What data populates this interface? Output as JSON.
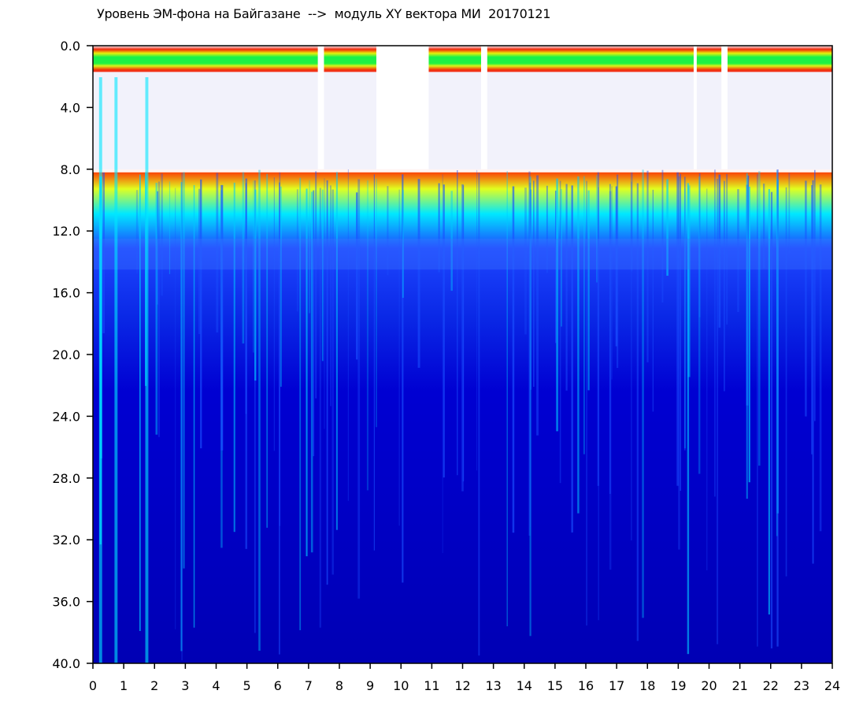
{
  "chart_data": {
    "type": "heatmap",
    "title": "Уровень ЭМ-фона на Байгазане  -->  модуль XY вектора МИ  20170121",
    "xlabel": "",
    "ylabel": "",
    "xlim": [
      0,
      24
    ],
    "ylim": [
      0,
      40
    ],
    "y_inverted": true,
    "grid": false,
    "x_ticks": [
      "0",
      "1",
      "2",
      "3",
      "4",
      "5",
      "6",
      "7",
      "8",
      "9",
      "10",
      "11",
      "12",
      "13",
      "14",
      "15",
      "16",
      "17",
      "18",
      "19",
      "20",
      "21",
      "22",
      "23",
      "24"
    ],
    "y_ticks": [
      "0.0",
      "4.0",
      "8.0",
      "12.0",
      "16.0",
      "20.0",
      "24.0",
      "28.0",
      "32.0",
      "36.0",
      "40.0"
    ],
    "colormap": [
      "#0000c8",
      "#0a3cff",
      "#00dcff",
      "#00ff50",
      "#f0ff00",
      "#ff1e00",
      "#ffffff"
    ],
    "background_color": "#0000b4",
    "active_band_y": [
      1.5,
      8.0
    ],
    "gap_band_y": [
      6.5,
      8.0
    ],
    "quiet_intervals_x": [
      [
        7.3,
        7.5
      ],
      [
        9.2,
        10.9
      ],
      [
        12.6,
        12.8
      ],
      [
        19.5,
        19.6
      ],
      [
        20.4,
        20.6
      ]
    ]
  }
}
